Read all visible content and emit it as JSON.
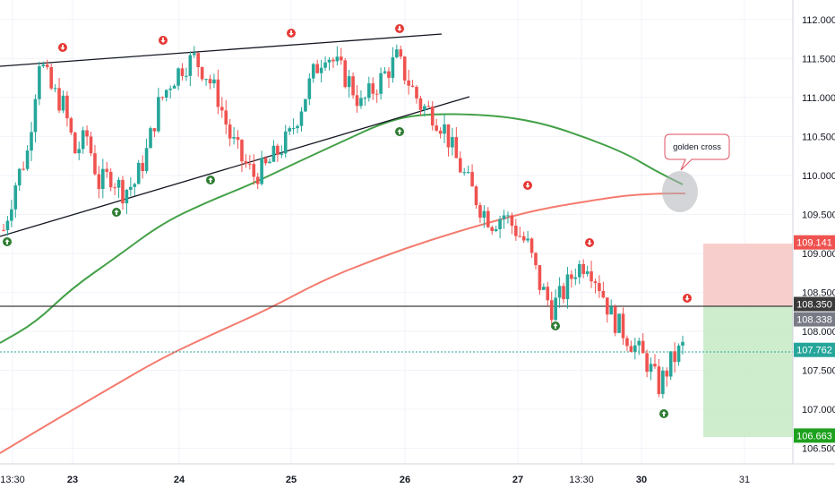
{
  "chart_data": {
    "type": "candlestick",
    "instrument_hint": "",
    "price_axis": {
      "ticks": [
        "112.000",
        "111.500",
        "111.000",
        "110.500",
        "110.000",
        "109.500",
        "109.000",
        "108.500",
        "108.000",
        "107.500",
        "107.000",
        "106.500"
      ],
      "range": [
        106.3,
        112.25
      ]
    },
    "time_axis": {
      "labels": [
        "13:30",
        "23",
        "24",
        "25",
        "26",
        "27",
        "13:30",
        "30",
        "31"
      ],
      "bold": [
        false,
        true,
        true,
        true,
        true,
        true,
        false,
        true,
        false
      ]
    },
    "price_labels": [
      {
        "name": "stop-loss-label",
        "text": "109.141",
        "value": 109.141,
        "bg": "#ef5350",
        "fg": "#ffffff"
      },
      {
        "name": "horizontal-line-label",
        "text": "108.350",
        "value": 108.35,
        "bg": "#3a3a3a",
        "fg": "#ffffff"
      },
      {
        "name": "entry-label",
        "text": "108.338",
        "value": 108.338,
        "bg": "#787b86",
        "fg": "#ffffff"
      },
      {
        "name": "last-price-label",
        "text": "107.762",
        "value": 107.762,
        "bg": "#26a69a",
        "fg": "#ffffff"
      },
      {
        "name": "take-profit-label",
        "text": "106.663",
        "value": 106.663,
        "bg": "#1ea11e",
        "fg": "#ffffff"
      }
    ],
    "annotation": {
      "text": "golden cross"
    },
    "colors": {
      "up": "#26a69a",
      "down": "#ef5350",
      "ma_fast": "#43a047",
      "ma_slow": "#f47b6e",
      "trendline": "#131722",
      "grid": "#f0f3fa"
    },
    "candles_close_path": [
      109.3,
      109.9,
      110.3,
      111.5,
      111.1,
      110.9,
      110.3,
      110.5,
      109.9,
      110.0,
      109.8,
      109.9,
      110.3,
      110.9,
      111.2,
      111.4,
      111.5,
      111.3,
      111.0,
      110.5,
      110.2,
      110.0,
      110.1,
      110.3,
      110.5,
      110.9,
      111.3,
      111.6,
      111.4,
      111.2,
      110.9,
      111.1,
      111.3,
      111.5,
      111.2,
      110.9,
      110.8,
      110.6,
      110.2,
      109.9,
      109.6,
      109.4,
      109.5,
      109.3,
      109.1,
      108.6,
      108.3,
      108.5,
      108.8,
      108.9,
      108.6,
      108.2,
      108.0,
      107.8,
      107.6,
      107.3,
      107.6,
      107.8
    ]
  }
}
